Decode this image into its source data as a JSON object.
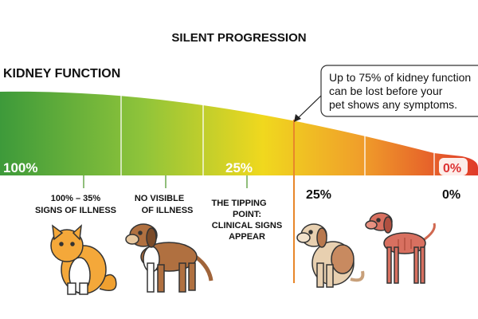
{
  "title": "SILENT PROGRESSION",
  "section_label": "KIDNEY FUNCTION",
  "callout": {
    "lines": [
      "Up to 75% of kidney function",
      "can be lost before your",
      "pet shows any symptoms."
    ]
  },
  "bar_labels": [
    "100%",
    "25%",
    "0%"
  ],
  "stages": [
    {
      "lines": [
        "100% – 35%",
        "SIGNS OF ILLNESS"
      ]
    },
    {
      "lines": [
        "NO VISIBLE",
        "OF ILLNESS"
      ]
    },
    {
      "lines": [
        "THE TIPPING",
        "POINT:",
        "CLINICAL SIGNS",
        "APPEAR"
      ]
    },
    {
      "lines": [
        "25%"
      ]
    },
    {
      "lines": [
        "0%"
      ]
    }
  ]
}
